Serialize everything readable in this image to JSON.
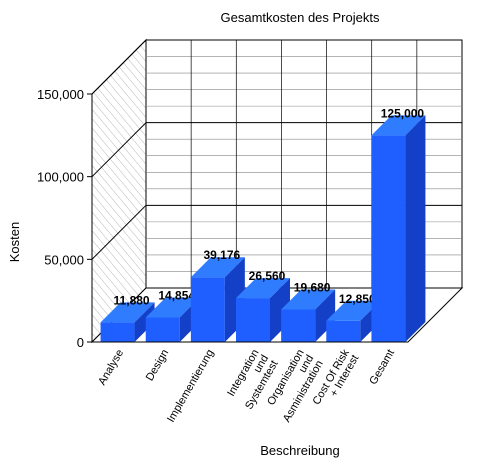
{
  "chart_data": {
    "type": "bar",
    "title": "Gesamtkosten des Projekts",
    "xlabel": "Beschreibung",
    "ylabel": "Kosten",
    "ylim": [
      0,
      150000
    ],
    "yticks": [
      "0",
      "50,000",
      "100,000",
      "150,000"
    ],
    "ytick_values": [
      0,
      50000,
      100000,
      150000
    ],
    "categories": [
      [
        "Analyse"
      ],
      [
        "Design"
      ],
      [
        "Implementierung"
      ],
      [
        "Integration",
        "und",
        "Systemtest"
      ],
      [
        "Organisation",
        "und",
        "Asministration"
      ],
      [
        "Cost Of Risk",
        "+ Interest"
      ],
      [
        "Gesamt"
      ]
    ],
    "values": [
      11880,
      14854,
      39176,
      26560,
      19680,
      12850,
      125000
    ],
    "value_labels": [
      "11,880",
      "14,854",
      "39,176",
      "26,560",
      "19,680",
      "12,850",
      "125,000"
    ],
    "three_d": true,
    "grid": true,
    "colors": {
      "front": "#1f5fff",
      "top": "#2f7cff",
      "side": "#1440c8",
      "grid": "#000000",
      "wall_hatch": "#b0b0b0"
    }
  }
}
